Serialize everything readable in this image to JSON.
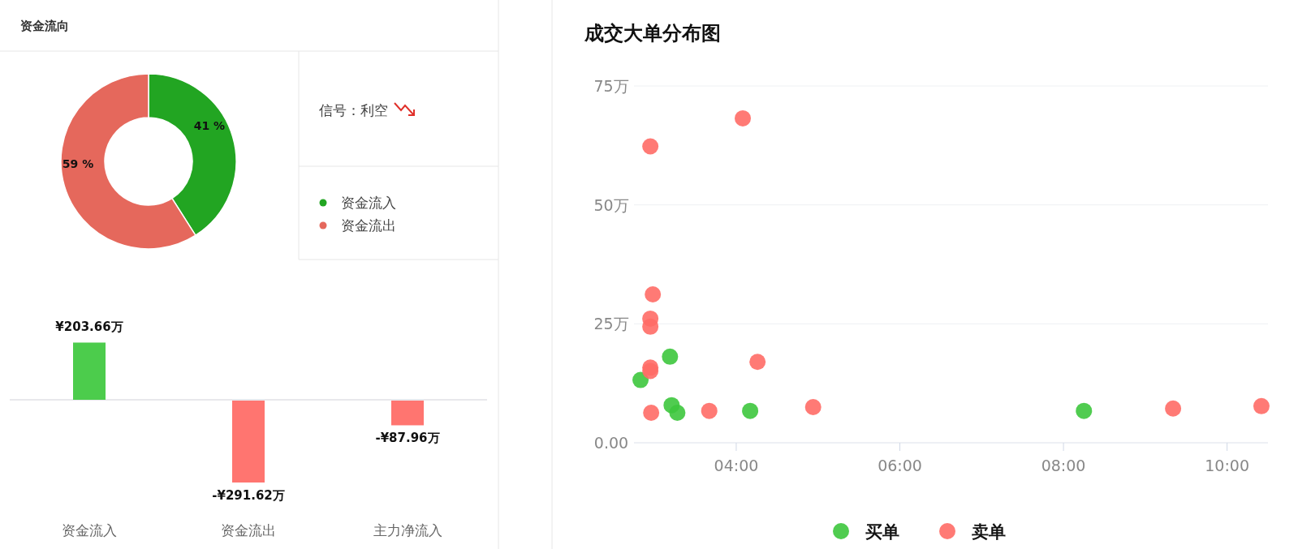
{
  "chart_data": [
    {
      "type": "donut",
      "title": "资金流向",
      "categories": [
        "资金流入",
        "资金流出"
      ],
      "values": [
        41,
        59
      ],
      "colors": [
        "#22a522",
        "#e5685c"
      ],
      "value_labels": [
        "41 %",
        "59 %"
      ],
      "legend": "right",
      "annotations": [
        "信号：利空"
      ]
    },
    {
      "type": "bar",
      "categories": [
        "资金流入",
        "资金流出",
        "主力净流入"
      ],
      "values": [
        203.66,
        -291.62,
        -87.96
      ],
      "colors": [
        "#4ccc4c",
        "#ff7570",
        "#ff7570"
      ],
      "value_labels": [
        "¥203.66万",
        "-¥291.62万",
        "-¥87.96万"
      ]
    },
    {
      "type": "scatter",
      "title": "成交大单分布图",
      "xlim": [
        2.75,
        10.5
      ],
      "ylim": [
        0,
        75
      ],
      "xticks": [
        {
          "value": 4,
          "label": "04:00"
        },
        {
          "value": 6,
          "label": "06:00"
        },
        {
          "value": 8,
          "label": "08:00"
        },
        {
          "value": 10,
          "label": "10:00"
        }
      ],
      "yticks": [
        {
          "value": 0,
          "label": "0.00"
        },
        {
          "value": 25,
          "label": "25万"
        },
        {
          "value": 50,
          "label": "50万"
        },
        {
          "value": 75,
          "label": "75万"
        }
      ],
      "grid": "y",
      "marker": "circle",
      "legend": "bottom",
      "series": [
        {
          "name": "买单",
          "color": "#3dc63d",
          "x": [
            2.83,
            3.19,
            3.21,
            3.28,
            4.17,
            8.25
          ],
          "values": [
            13.2,
            18.1,
            7.9,
            6.3,
            6.7,
            6.7
          ]
        },
        {
          "name": "卖单",
          "color": "#ff6b66",
          "x": [
            2.95,
            4.08,
            2.98,
            2.95,
            2.95,
            2.95,
            2.95,
            2.96,
            4.26,
            3.67,
            4.94,
            9.34,
            10.42
          ],
          "values": [
            62.3,
            68.2,
            31.2,
            26.1,
            24.4,
            15.8,
            15.1,
            6.3,
            17.0,
            6.7,
            7.5,
            7.2,
            7.7
          ]
        }
      ]
    }
  ]
}
